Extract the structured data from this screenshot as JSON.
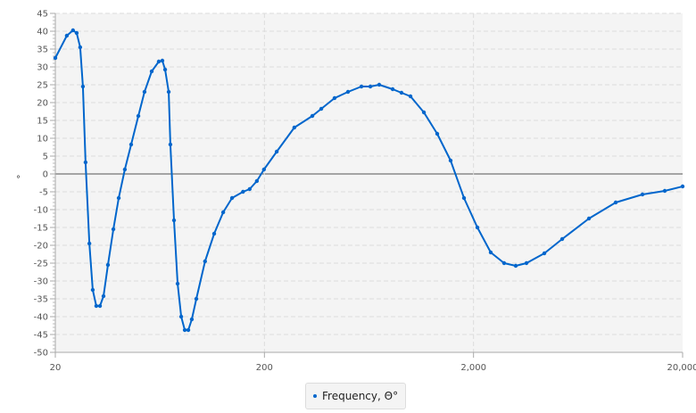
{
  "chart_data": {
    "type": "line",
    "title": "",
    "xlabel": "",
    "ylabel": "°",
    "x_scale": "log",
    "xlim": [
      20,
      20000
    ],
    "ylim": [
      -50,
      45
    ],
    "x_ticks": [
      "20",
      "200",
      "2,000",
      "20,000"
    ],
    "y_ticks": [
      45,
      40,
      35,
      30,
      25,
      20,
      15,
      10,
      5,
      0,
      -5,
      -10,
      -15,
      -20,
      -25,
      -30,
      -35,
      -40,
      -45,
      -50
    ],
    "grid": true,
    "legend_position": "bottom",
    "colors": {
      "series": "#0066cc",
      "plot_bg": "#f4f4f4",
      "zero_line": "#555555"
    },
    "series": [
      {
        "name": "Frequency, Θ°",
        "x": [
          20,
          22.7,
          24.3,
          25.3,
          26.3,
          27.1,
          27.9,
          29.1,
          30.2,
          31.4,
          32.7,
          34.0,
          35.7,
          37.9,
          40.2,
          43.0,
          46.1,
          49.9,
          53.4,
          57.8,
          62.5,
          65.0,
          67.0,
          69.7,
          71.0,
          73.9,
          76.9,
          80.0,
          83.2,
          86.5,
          89.9,
          94.5,
          104,
          115,
          127,
          140,
          158,
          170,
          184,
          199,
          229,
          278,
          339,
          374,
          433,
          502,
          582,
          642,
          708,
          821,
          905,
          999,
          1158,
          1341,
          1554,
          1801,
          2087,
          2418,
          2802,
          3184,
          3582,
          4362,
          5309,
          7128,
          9572,
          12854,
          16430,
          20000
        ],
        "y": [
          32.5,
          38.75,
          40.25,
          39.5,
          35.5,
          24.5,
          3.25,
          -19.5,
          -32.5,
          -37,
          -37,
          -34.25,
          -25.5,
          -15.5,
          -6.75,
          1.25,
          8.25,
          16.25,
          23,
          28.75,
          31.5,
          31.75,
          29.25,
          23,
          8.25,
          -13,
          -30.75,
          -40,
          -43.75,
          -43.75,
          -40.75,
          -35,
          -24.5,
          -16.75,
          -10.75,
          -6.75,
          -5,
          -4.25,
          -2,
          1.25,
          6.25,
          13,
          16.25,
          18.25,
          21.25,
          23,
          24.5,
          24.5,
          25,
          23.75,
          22.75,
          21.75,
          17.25,
          11.25,
          3.75,
          -6.75,
          -15,
          -22,
          -25,
          -25.75,
          -25,
          -22.25,
          -18.25,
          -12.5,
          -8,
          -5.75,
          -4.75,
          -3.5
        ]
      }
    ]
  }
}
